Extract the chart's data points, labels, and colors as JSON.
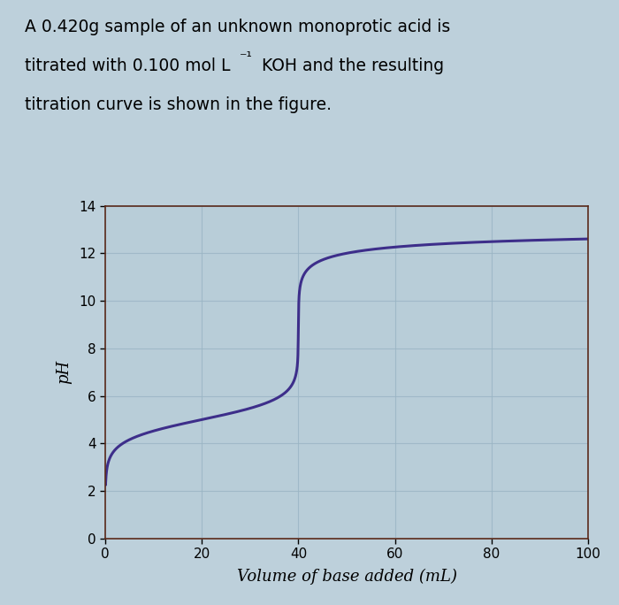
{
  "title_line1": "A 0.420g sample of an unknown monoprotic acid is",
  "title_line2": "titrated with 0.100 mol L",
  "title_line2_sup": "⁻¹",
  "title_line2_rest": " KOH and the resulting",
  "title_line3": "titration curve is shown in the figure.",
  "xlabel": "Volume of base added (mL)",
  "ylabel": "pH",
  "xlim": [
    0,
    100
  ],
  "ylim": [
    0,
    14
  ],
  "xticks": [
    0,
    20,
    40,
    60,
    80,
    100
  ],
  "yticks": [
    0,
    2,
    4,
    6,
    8,
    10,
    12,
    14
  ],
  "curve_color": "#3d2e8a",
  "fig_bg_color": "#bdd0db",
  "plot_bg_color": "#b8cdd8",
  "grid_color": "#9ab5c4",
  "spine_color": "#5a2a1a",
  "equivalence_vol": 40,
  "start_pH": 2.7,
  "end_pH": 12.5,
  "pKa": 5.0,
  "line_width": 2.2,
  "title_fontsize": 13.5,
  "axis_label_fontsize": 13,
  "tick_fontsize": 11
}
